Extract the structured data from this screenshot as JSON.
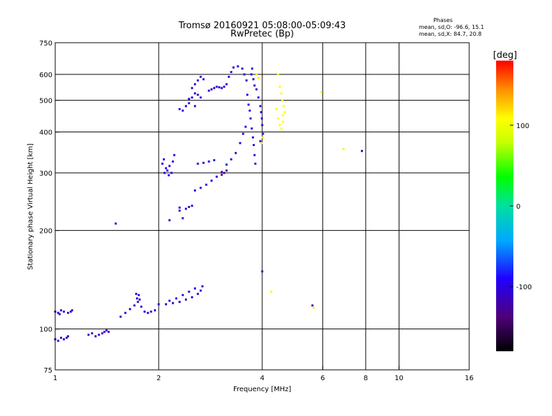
{
  "chart_data": {
    "type": "scatter",
    "title": "Tromsø 20160921 05:08:00-05:09:43",
    "subtitle": "RwPretec (Bp)",
    "xlabel": "Frequency [MHz]",
    "ylabel": "Stationary phase Virtual Height [km]",
    "xscale": "log",
    "yscale": "log",
    "xlim": [
      1,
      16
    ],
    "ylim": [
      75,
      750
    ],
    "xticks": [
      1,
      2,
      4,
      6,
      8,
      10,
      16
    ],
    "xtick_labels": [
      "1",
      "2",
      "4",
      "6",
      "8",
      "10",
      "16"
    ],
    "xgrid": [
      2,
      4,
      6,
      8,
      10
    ],
    "yticks": [
      75,
      100,
      200,
      300,
      400,
      500,
      600,
      750
    ],
    "ytick_labels": [
      "75",
      "100",
      "200",
      "300",
      "400",
      "500",
      "600",
      "750"
    ],
    "ygrid": [
      100,
      200,
      300,
      400,
      500,
      600
    ],
    "grid": true,
    "phase_stats": {
      "title": "Phases",
      "line_o": "mean, sd,O: -96.6, 15.1",
      "line_x": "mean, sd,X:  84.7, 20.8"
    },
    "colorbar": {
      "label": "[deg]",
      "range": [
        -180,
        180
      ],
      "ticks": [
        100,
        0,
        -100
      ],
      "tick_labels": [
        "100",
        "0",
        "-100"
      ]
    },
    "series": [
      {
        "phase": -105,
        "points": [
          [
            1.0,
            113
          ],
          [
            1.02,
            112
          ],
          [
            1.04,
            114
          ],
          [
            1.06,
            113
          ],
          [
            1.09,
            112
          ],
          [
            1.11,
            113
          ],
          [
            1.12,
            114
          ],
          [
            1.03,
            111
          ]
        ]
      },
      {
        "phase": -108,
        "points": [
          [
            1.0,
            93
          ],
          [
            1.02,
            92
          ],
          [
            1.04,
            94
          ],
          [
            1.06,
            93
          ],
          [
            1.08,
            94
          ],
          [
            1.09,
            95
          ]
        ]
      },
      {
        "phase": -110,
        "points": [
          [
            1.25,
            96
          ],
          [
            1.28,
            97
          ],
          [
            1.31,
            95
          ],
          [
            1.34,
            96
          ],
          [
            1.37,
            97
          ],
          [
            1.39,
            98
          ],
          [
            1.41,
            99
          ],
          [
            1.43,
            98
          ]
        ]
      },
      {
        "phase": -103,
        "points": [
          [
            1.55,
            109
          ],
          [
            1.6,
            112
          ],
          [
            1.65,
            115
          ],
          [
            1.7,
            118
          ],
          [
            1.74,
            121
          ],
          [
            1.78,
            117
          ],
          [
            1.82,
            113
          ],
          [
            1.86,
            112
          ],
          [
            1.9,
            113
          ],
          [
            1.95,
            114
          ]
        ]
      },
      {
        "phase": -100,
        "points": [
          [
            1.72,
            128
          ],
          [
            1.73,
            124
          ],
          [
            1.75,
            127
          ],
          [
            1.76,
            123
          ]
        ]
      },
      {
        "phase": -102,
        "points": [
          [
            2.0,
            119
          ],
          [
            2.1,
            119
          ],
          [
            2.2,
            120
          ],
          [
            2.3,
            121
          ],
          [
            2.4,
            123
          ],
          [
            2.5,
            125
          ],
          [
            2.6,
            128
          ],
          [
            2.65,
            131
          ],
          [
            2.55,
            133
          ],
          [
            2.45,
            130
          ],
          [
            2.35,
            127
          ],
          [
            2.68,
            135
          ],
          [
            2.25,
            124
          ],
          [
            2.15,
            122
          ]
        ]
      },
      {
        "phase": -95,
        "points": [
          [
            2.08,
            300
          ],
          [
            2.1,
            310
          ],
          [
            2.12,
            305
          ],
          [
            2.14,
            295
          ],
          [
            2.18,
            300
          ],
          [
            2.05,
            320
          ],
          [
            2.07,
            330
          ],
          [
            2.15,
            315
          ],
          [
            2.2,
            325
          ],
          [
            2.22,
            340
          ]
        ]
      },
      {
        "phase": -104,
        "points": [
          [
            2.3,
            470
          ],
          [
            2.35,
            465
          ],
          [
            2.4,
            480
          ],
          [
            2.45,
            490
          ],
          [
            2.5,
            510
          ],
          [
            2.55,
            525
          ],
          [
            2.6,
            520
          ],
          [
            2.65,
            510
          ],
          [
            2.55,
            480
          ],
          [
            2.45,
            505
          ],
          [
            2.5,
            545
          ],
          [
            2.55,
            560
          ],
          [
            2.6,
            575
          ],
          [
            2.65,
            590
          ],
          [
            2.7,
            580
          ]
        ]
      },
      {
        "phase": -102,
        "points": [
          [
            2.8,
            535
          ],
          [
            2.85,
            540
          ],
          [
            2.9,
            545
          ],
          [
            2.95,
            550
          ],
          [
            3.0,
            548
          ],
          [
            3.05,
            545
          ],
          [
            3.1,
            550
          ],
          [
            3.15,
            560
          ],
          [
            3.2,
            590
          ],
          [
            3.25,
            610
          ],
          [
            3.3,
            630
          ],
          [
            3.4,
            635
          ],
          [
            3.5,
            625
          ],
          [
            3.55,
            600
          ],
          [
            3.6,
            575
          ]
        ]
      },
      {
        "phase": -98,
        "points": [
          [
            3.62,
            520
          ],
          [
            3.65,
            485
          ],
          [
            3.68,
            465
          ],
          [
            3.7,
            440
          ],
          [
            3.73,
            410
          ],
          [
            3.76,
            385
          ],
          [
            3.78,
            365
          ],
          [
            3.8,
            340
          ],
          [
            3.82,
            320
          ],
          [
            3.74,
            625
          ],
          [
            3.72,
            600
          ],
          [
            3.77,
            580
          ],
          [
            3.8,
            555
          ],
          [
            3.85,
            540
          ],
          [
            3.9,
            510
          ]
        ]
      },
      {
        "phase": -97,
        "points": [
          [
            3.95,
            480
          ],
          [
            3.97,
            460
          ],
          [
            3.99,
            440
          ],
          [
            4.0,
            420
          ],
          [
            4.02,
            395
          ],
          [
            3.95,
            375
          ]
        ]
      },
      {
        "phase": -100,
        "points": [
          [
            2.55,
            265
          ],
          [
            2.65,
            270
          ],
          [
            2.75,
            276
          ],
          [
            2.85,
            284
          ],
          [
            2.95,
            292
          ],
          [
            3.05,
            302
          ],
          [
            3.15,
            318
          ],
          [
            3.25,
            330
          ],
          [
            3.35,
            345
          ],
          [
            3.45,
            370
          ],
          [
            3.52,
            395
          ],
          [
            3.58,
            415
          ]
        ]
      },
      {
        "phase": -140,
        "points": [
          [
            3.1,
            300
          ],
          [
            3.05,
            296
          ],
          [
            3.15,
            305
          ]
        ]
      },
      {
        "phase": -101,
        "points": [
          [
            2.6,
            320
          ],
          [
            2.7,
            322
          ],
          [
            2.8,
            325
          ],
          [
            2.9,
            328
          ],
          [
            2.4,
            233
          ],
          [
            2.45,
            236
          ],
          [
            2.5,
            238
          ],
          [
            2.3,
            230
          ],
          [
            2.3,
            235
          ]
        ]
      },
      {
        "phase": 108,
        "points": [
          [
            4.4,
            470
          ],
          [
            4.45,
            440
          ],
          [
            4.5,
            420
          ],
          [
            4.55,
            410
          ],
          [
            4.6,
            450
          ],
          [
            4.62,
            480
          ],
          [
            4.58,
            500
          ],
          [
            4.55,
            525
          ],
          [
            4.5,
            550
          ],
          [
            4.45,
            600
          ],
          [
            4.6,
            430
          ],
          [
            4.65,
            460
          ]
        ]
      },
      {
        "phase": 112,
        "points": [
          [
            3.9,
            585
          ],
          [
            3.98,
            370
          ],
          [
            4.02,
            385
          ],
          [
            3.85,
            600
          ]
        ]
      },
      {
        "phase": -110,
        "points": [
          [
            1.5,
            210
          ],
          [
            2.15,
            215
          ],
          [
            2.35,
            218
          ],
          [
            4.0,
            150
          ],
          [
            5.6,
            118
          ],
          [
            7.8,
            350
          ]
        ]
      },
      {
        "phase": 110,
        "points": [
          [
            5.65,
            116
          ],
          [
            4.25,
            130
          ],
          [
            6.9,
            355
          ],
          [
            5.95,
            530
          ]
        ]
      }
    ]
  }
}
